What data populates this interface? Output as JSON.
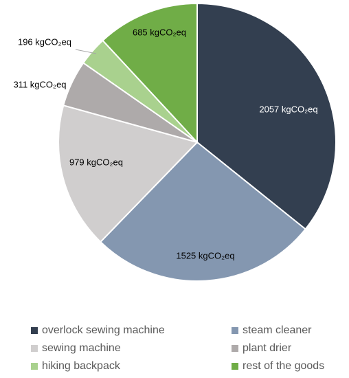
{
  "chart_data": {
    "type": "pie",
    "categories": [
      "overlock sewing machine",
      "steam cleaner",
      "sewing machine",
      "plant drier",
      "hiking backpack",
      "rest of the goods"
    ],
    "values": [
      2057,
      1525,
      979,
      311,
      196,
      685
    ],
    "value_labels": [
      "2057 kgCO₂eq",
      "1525 kgCO₂eq",
      "979 kgCO₂eq",
      "311 kgCO₂eq",
      "196 kgCO₂eq",
      "685 kgCO₂eq"
    ],
    "colors": [
      "#333f50",
      "#8497b0",
      "#d0cece",
      "#aeaaaa",
      "#a9d18e",
      "#70ad47"
    ],
    "legend": "bottom"
  }
}
